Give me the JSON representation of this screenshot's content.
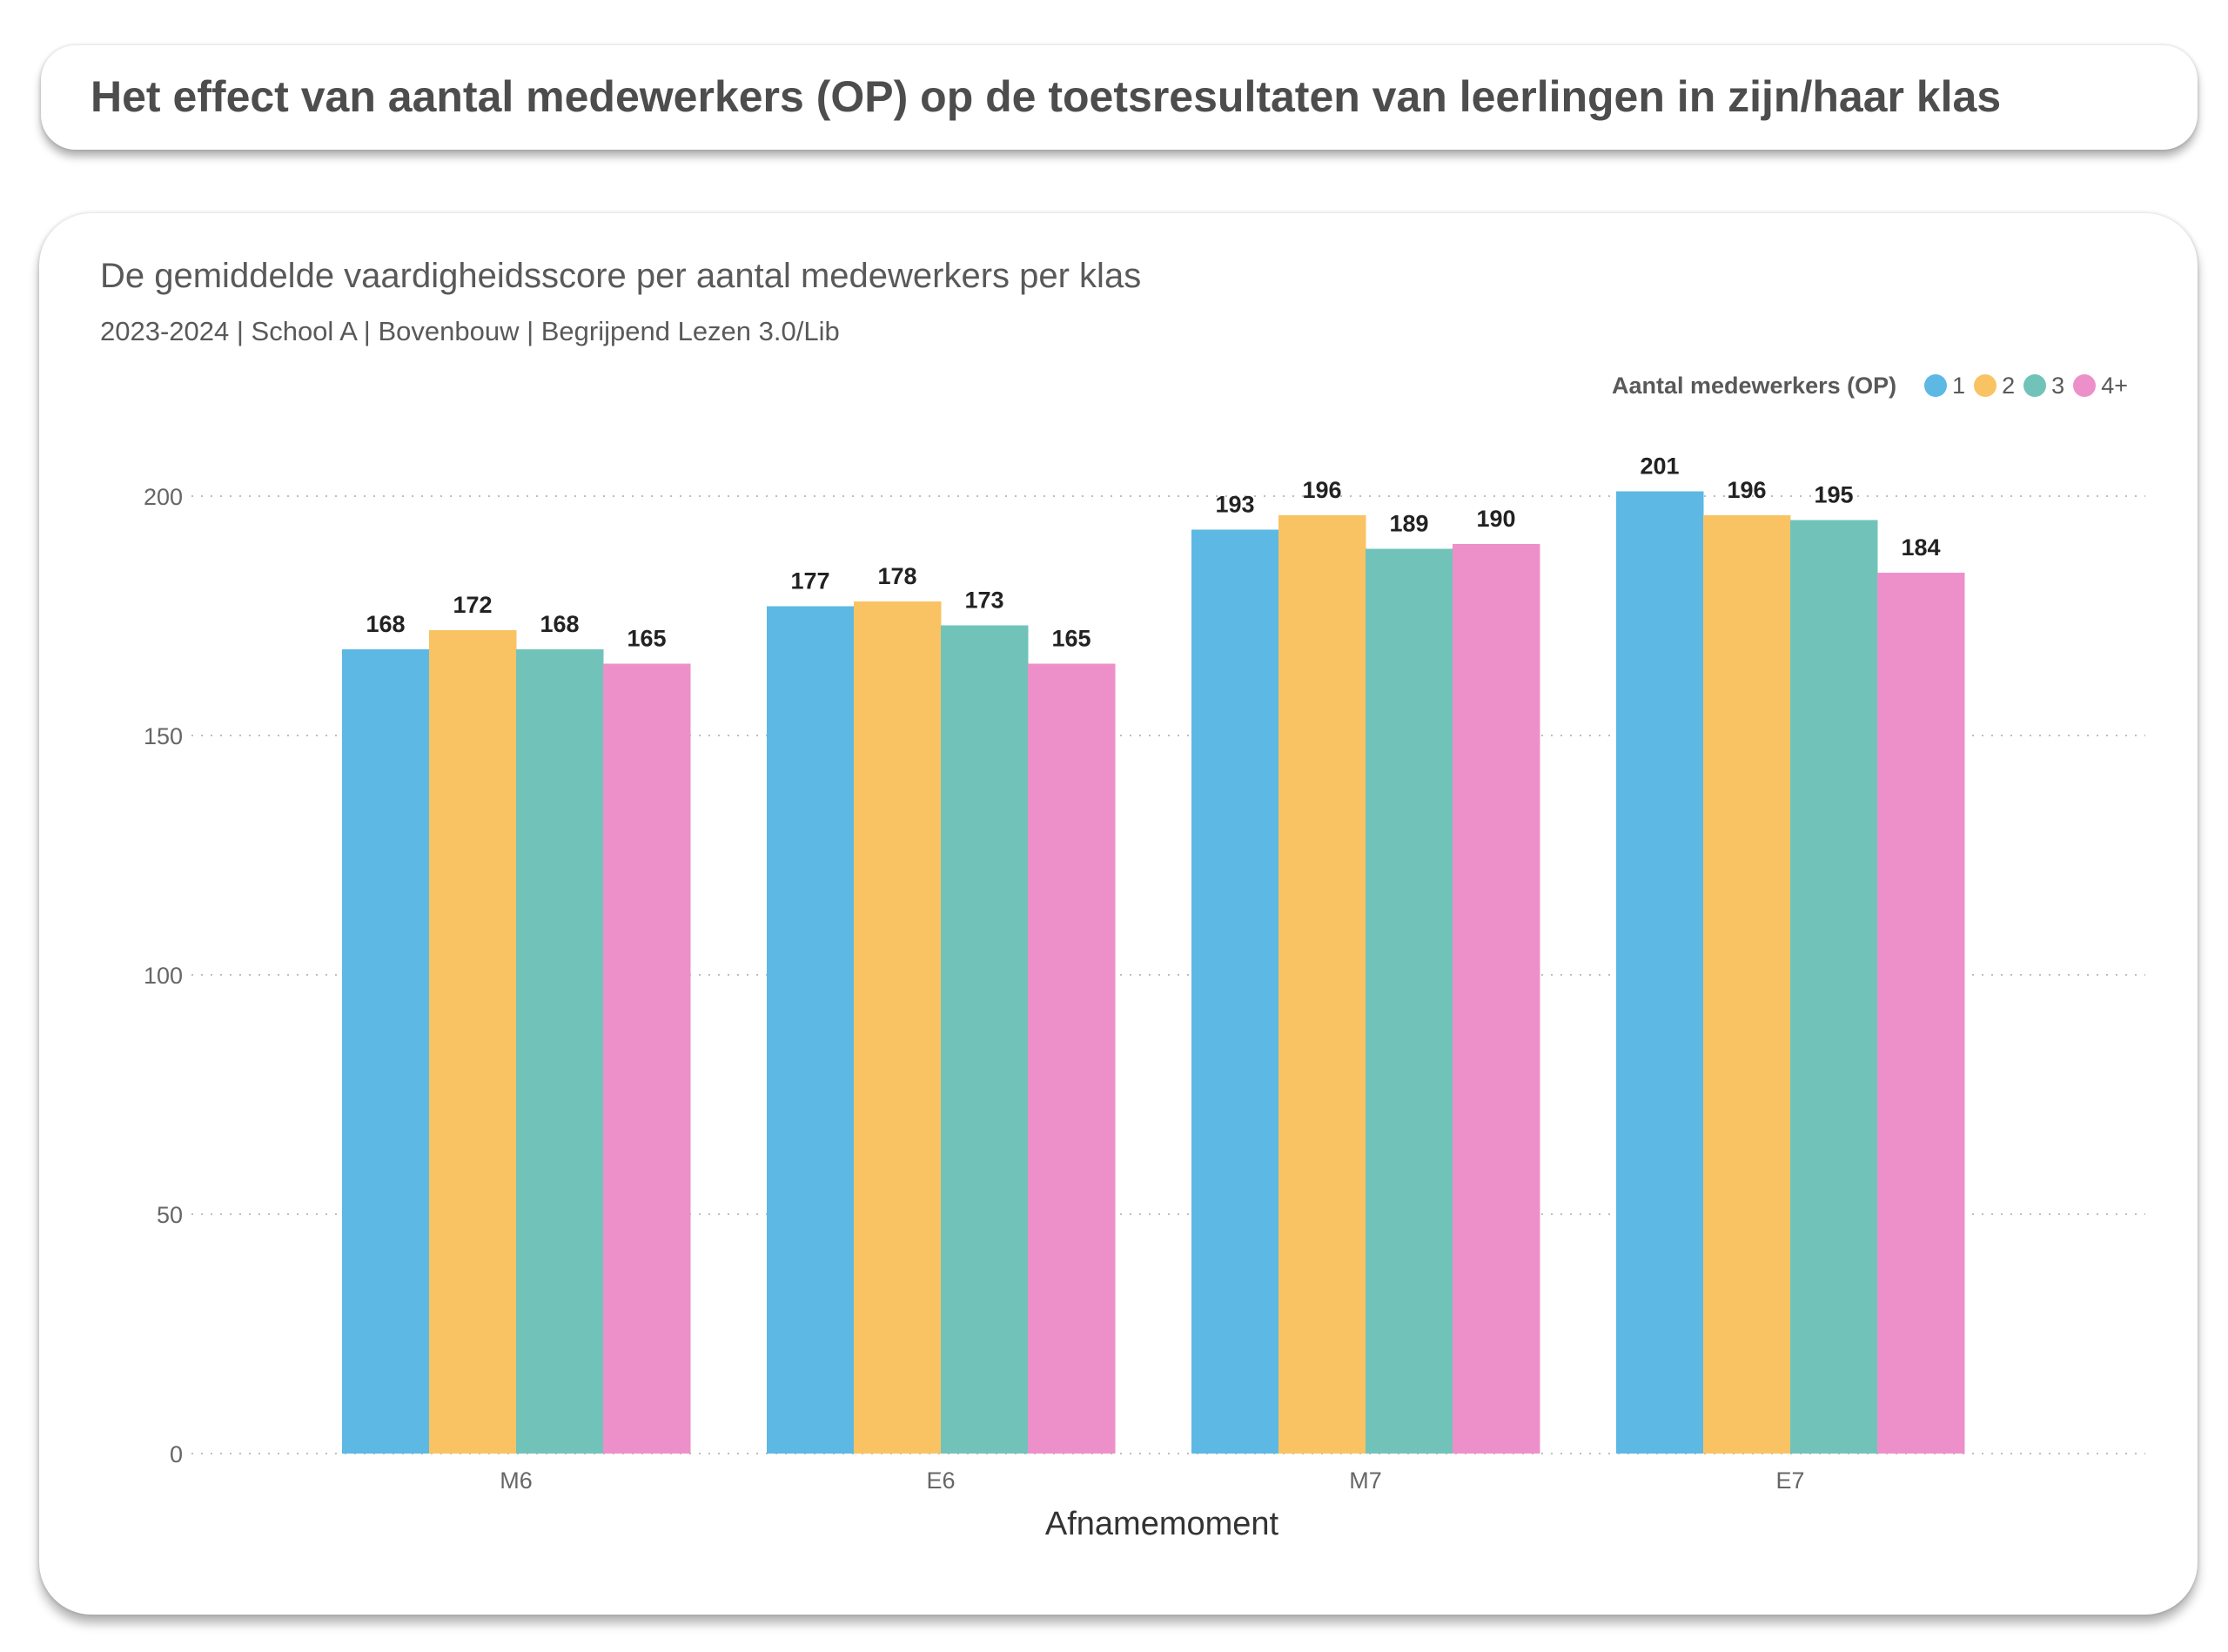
{
  "page_title": "Het effect van aantal medewerkers (OP) op de toetsresultaten van leerlingen in zijn/haar klas",
  "chart_data": {
    "type": "bar",
    "title": "De gemiddelde vaardigheidsscore per aantal medewerkers per klas",
    "subtitle": "2023-2024 | School A | Bovenbouw | Begrijpend Lezen 3.0/Lib",
    "xlabel": "Afnamemoment",
    "ylabel": "",
    "categories": [
      "M6",
      "E6",
      "M7",
      "E7"
    ],
    "legend_title": "Aantal medewerkers (OP)",
    "legend_position": "top-right",
    "series": [
      {
        "name": "1",
        "color": "#5db8e3",
        "values": [
          168,
          177,
          193,
          201
        ]
      },
      {
        "name": "2",
        "color": "#f9c363",
        "values": [
          172,
          178,
          196,
          196
        ]
      },
      {
        "name": "3",
        "color": "#71c3ba",
        "values": [
          168,
          173,
          189,
          195
        ]
      },
      {
        "name": "4+",
        "color": "#ed90c9",
        "values": [
          165,
          165,
          190,
          184
        ]
      }
    ],
    "ylim": [
      0,
      200
    ],
    "yticks": [
      0,
      50,
      100,
      150,
      200
    ],
    "grid": true
  }
}
